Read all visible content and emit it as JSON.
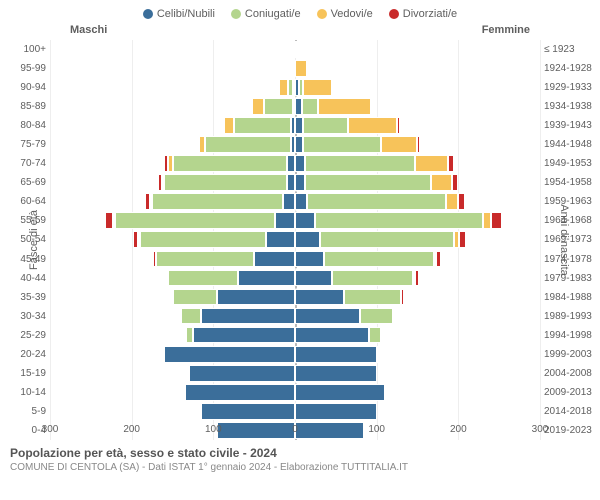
{
  "legend": [
    {
      "label": "Celibi/Nubili",
      "color": "#3b6e9a"
    },
    {
      "label": "Coniugati/e",
      "color": "#b4d58e"
    },
    {
      "label": "Vedovi/e",
      "color": "#f7c35a"
    },
    {
      "label": "Divorziati/e",
      "color": "#c92a2a"
    }
  ],
  "header_male": "Maschi",
  "header_female": "Femmine",
  "axis_left_label": "Fasce di età",
  "axis_right_label": "Anni di nascita",
  "x_ticks": [
    "300",
    "200",
    "100",
    "0",
    "100",
    "200",
    "300"
  ],
  "x_max": 300,
  "footer_title": "Popolazione per età, sesso e stato civile - 2024",
  "footer_sub": "COMUNE DI CENTOLA (SA) - Dati ISTAT 1° gennaio 2024 - Elaborazione TUTTITALIA.IT",
  "colors": {
    "celibi": "#3b6e9a",
    "coniugati": "#b4d58e",
    "vedovi": "#f7c35a",
    "divorziati": "#c92a2a",
    "grid": "#eeeeee",
    "center": "#bbbbbb",
    "text": "#5e5e5e",
    "bg": "#ffffff"
  },
  "rows": [
    {
      "age": "100+",
      "birth": "≤ 1923",
      "m": [
        0,
        0,
        0,
        0
      ],
      "f": [
        0,
        0,
        3,
        0
      ]
    },
    {
      "age": "95-99",
      "birth": "1924-1928",
      "m": [
        0,
        0,
        3,
        0
      ],
      "f": [
        0,
        0,
        15,
        0
      ]
    },
    {
      "age": "90-94",
      "birth": "1929-1933",
      "m": [
        3,
        5,
        12,
        0
      ],
      "f": [
        5,
        5,
        35,
        0
      ]
    },
    {
      "age": "85-89",
      "birth": "1934-1938",
      "m": [
        3,
        35,
        15,
        0
      ],
      "f": [
        8,
        20,
        65,
        2
      ]
    },
    {
      "age": "80-84",
      "birth": "1939-1943",
      "m": [
        5,
        70,
        12,
        2
      ],
      "f": [
        10,
        55,
        60,
        3
      ]
    },
    {
      "age": "75-79",
      "birth": "1944-1948",
      "m": [
        5,
        105,
        8,
        2
      ],
      "f": [
        10,
        95,
        45,
        3
      ]
    },
    {
      "age": "70-74",
      "birth": "1949-1953",
      "m": [
        10,
        140,
        5,
        5
      ],
      "f": [
        12,
        135,
        40,
        8
      ]
    },
    {
      "age": "65-69",
      "birth": "1954-1958",
      "m": [
        10,
        150,
        3,
        5
      ],
      "f": [
        12,
        155,
        25,
        8
      ]
    },
    {
      "age": "60-64",
      "birth": "1959-1963",
      "m": [
        15,
        160,
        2,
        6
      ],
      "f": [
        15,
        170,
        15,
        8
      ]
    },
    {
      "age": "55-59",
      "birth": "1964-1968",
      "m": [
        25,
        195,
        2,
        10
      ],
      "f": [
        25,
        205,
        10,
        13
      ]
    },
    {
      "age": "50-54",
      "birth": "1969-1973",
      "m": [
        35,
        155,
        2,
        6
      ],
      "f": [
        30,
        165,
        6,
        8
      ]
    },
    {
      "age": "45-49",
      "birth": "1974-1978",
      "m": [
        50,
        120,
        0,
        4
      ],
      "f": [
        35,
        135,
        3,
        6
      ]
    },
    {
      "age": "40-44",
      "birth": "1979-1983",
      "m": [
        70,
        85,
        0,
        3
      ],
      "f": [
        45,
        100,
        2,
        4
      ]
    },
    {
      "age": "35-39",
      "birth": "1984-1988",
      "m": [
        95,
        55,
        0,
        2
      ],
      "f": [
        60,
        70,
        0,
        3
      ]
    },
    {
      "age": "30-34",
      "birth": "1989-1993",
      "m": [
        115,
        25,
        0,
        0
      ],
      "f": [
        80,
        40,
        0,
        2
      ]
    },
    {
      "age": "25-29",
      "birth": "1994-1998",
      "m": [
        125,
        8,
        0,
        0
      ],
      "f": [
        90,
        15,
        0,
        0
      ]
    },
    {
      "age": "20-24",
      "birth": "1999-2003",
      "m": [
        160,
        2,
        0,
        0
      ],
      "f": [
        100,
        2,
        0,
        0
      ]
    },
    {
      "age": "15-19",
      "birth": "2004-2008",
      "m": [
        130,
        0,
        0,
        0
      ],
      "f": [
        100,
        0,
        0,
        0
      ]
    },
    {
      "age": "10-14",
      "birth": "2009-2013",
      "m": [
        135,
        0,
        0,
        0
      ],
      "f": [
        110,
        0,
        0,
        0
      ]
    },
    {
      "age": "5-9",
      "birth": "2014-2018",
      "m": [
        115,
        0,
        0,
        0
      ],
      "f": [
        100,
        0,
        0,
        0
      ]
    },
    {
      "age": "0-4",
      "birth": "2019-2023",
      "m": [
        95,
        0,
        0,
        0
      ],
      "f": [
        85,
        0,
        0,
        0
      ]
    }
  ]
}
